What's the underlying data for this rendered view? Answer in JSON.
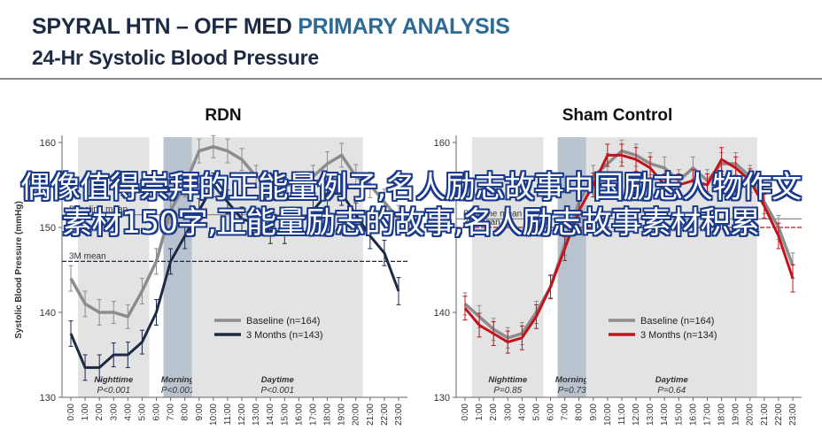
{
  "header": {
    "title_main": "SPYRAL HTN – OFF MED ",
    "title_accent": "PRIMARY ANALYSIS",
    "subtitle": "24-Hr Systolic Blood Pressure"
  },
  "overlay_text": "偶像值得崇拜的正能量例子,名人励志故事中国励志人物作文素材150字,正能量励志的故事,名人励志故事素材积累",
  "colors": {
    "baseline": "#8c8c8c",
    "rdn": "#1c2a44",
    "sham": "#c0141c",
    "band": "#e3e3e3",
    "morning": "#b9c3cf"
  },
  "chart_data": [
    {
      "type": "line",
      "title": "RDN",
      "ylabel": "Systolic Blood Pressure (mmHg)",
      "ylim": [
        130,
        160
      ],
      "yticks": [
        130,
        140,
        150,
        160
      ],
      "categories": [
        "0:00",
        "1:00",
        "2:00",
        "3:00",
        "4:00",
        "5:00",
        "6:00",
        "7:00",
        "8:00",
        "9:00",
        "10:00",
        "11:00",
        "12:00",
        "13:00",
        "14:00",
        "15:00",
        "16:00",
        "17:00",
        "18:00",
        "19:00",
        "20:00",
        "21:00",
        "22:00",
        "23:00"
      ],
      "series": [
        {
          "name": "Baseline (n=164)",
          "color": "#8c8c8c",
          "values": [
            144,
            141,
            140,
            140,
            139.5,
            142.5,
            146,
            152,
            155,
            159,
            159.5,
            159,
            158,
            156,
            155,
            155,
            155,
            156,
            157.5,
            158.5,
            156,
            155,
            153,
            151
          ],
          "err": [
            1.5,
            1.5,
            1.5,
            1.3,
            1.4,
            1.5,
            1.5,
            1.5,
            1.4,
            1.4,
            1.3,
            1.4,
            1.3,
            1.3,
            1.3,
            1.3,
            1.4,
            1.3,
            1.4,
            1.4,
            1.4,
            1.5,
            1.5,
            1.6
          ]
        },
        {
          "name": "3 Months (n=143)",
          "color": "#1c2a44",
          "values": [
            137.5,
            133.5,
            133.5,
            135,
            135,
            136.5,
            140,
            146,
            149,
            152,
            155,
            153,
            151,
            150.5,
            149.5,
            149.5,
            150.5,
            152,
            154,
            154,
            151.5,
            149,
            147,
            142.5
          ],
          "err": [
            1.5,
            1.5,
            1.5,
            1.4,
            1.5,
            1.4,
            1.5,
            1.5,
            1.5,
            1.4,
            1.4,
            1.4,
            1.4,
            1.3,
            1.4,
            1.4,
            1.4,
            1.4,
            1.5,
            1.4,
            1.4,
            1.5,
            1.5,
            1.6
          ]
        }
      ],
      "reference_lines": [
        {
          "label": "Baseline mean",
          "value": 151.5,
          "color": "#8c8c8c"
        },
        {
          "label": "3M mean",
          "value": 146,
          "color": "#1c2a44"
        }
      ],
      "bands": [
        {
          "label": "Nighttime",
          "p": "P<0.001",
          "from": "1:00",
          "to": "6:00"
        },
        {
          "label": "Morning",
          "p": "P<0.001",
          "from": "7:00",
          "to": "9:00"
        },
        {
          "label": "Daytime",
          "p": "P<0.001",
          "from": "9:00",
          "to": "21:00"
        }
      ],
      "legend": "center-right"
    },
    {
      "type": "line",
      "title": "Sham Control",
      "ylabel": "",
      "ylim": [
        130,
        160
      ],
      "yticks": [
        130,
        140,
        150,
        160
      ],
      "categories": [
        "0:00",
        "1:00",
        "2:00",
        "3:00",
        "4:00",
        "5:00",
        "6:00",
        "7:00",
        "8:00",
        "9:00",
        "10:00",
        "11:00",
        "12:00",
        "13:00",
        "14:00",
        "15:00",
        "16:00",
        "17:00",
        "18:00",
        "19:00",
        "20:00",
        "21:00",
        "22:00",
        "23:00"
      ],
      "series": [
        {
          "name": "Baseline (n=164)",
          "color": "#8c8c8c",
          "values": [
            141,
            139.5,
            138,
            137,
            137.5,
            140,
            143,
            148,
            153,
            156,
            157.5,
            159,
            158.5,
            157.5,
            157,
            155.5,
            157,
            155.5,
            157.5,
            157.5,
            156,
            153,
            150,
            145.5
          ],
          "err": [
            1.3,
            1.3,
            1.3,
            1.2,
            1.3,
            1.3,
            1.3,
            1.3,
            1.3,
            1.3,
            1.2,
            1.3,
            1.3,
            1.3,
            1.3,
            1.3,
            1.3,
            1.3,
            1.3,
            1.3,
            1.3,
            1.4,
            1.4,
            1.5
          ]
        },
        {
          "name": "3 Months (n=134)",
          "color": "#c0141c",
          "values": [
            140.5,
            138.5,
            137.5,
            136.5,
            137,
            139.5,
            143,
            147.5,
            152,
            155,
            158.5,
            158.5,
            158,
            157,
            155,
            155,
            155.5,
            155,
            158,
            157,
            155.5,
            152.5,
            149,
            144
          ],
          "err": [
            1.4,
            1.4,
            1.4,
            1.3,
            1.4,
            1.4,
            1.4,
            1.4,
            1.4,
            1.4,
            1.3,
            1.3,
            1.4,
            1.3,
            1.3,
            1.3,
            1.3,
            1.3,
            1.4,
            1.3,
            1.4,
            1.4,
            1.5,
            1.6
          ]
        }
      ],
      "reference_lines": [
        {
          "label": "Baseline mean",
          "value": 151,
          "color": "#8c8c8c"
        },
        {
          "label": "3M mean",
          "value": 150,
          "color": "#c0141c"
        }
      ],
      "bands": [
        {
          "label": "Nighttime",
          "p": "P=0.85",
          "from": "1:00",
          "to": "6:00"
        },
        {
          "label": "Morning",
          "p": "P=0.73",
          "from": "7:00",
          "to": "9:00"
        },
        {
          "label": "Daytime",
          "p": "P=0.64",
          "from": "9:00",
          "to": "21:00"
        }
      ],
      "legend": "center-right"
    }
  ]
}
